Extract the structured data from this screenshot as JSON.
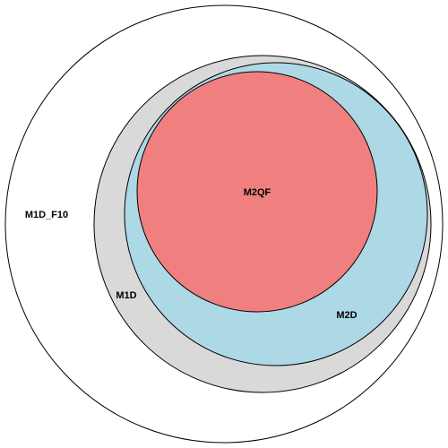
{
  "diagram": {
    "type": "euler",
    "sets": [
      {
        "id": "M1D_F10",
        "label": "M1D_F10",
        "color": "#ffffff"
      },
      {
        "id": "M1D",
        "label": "M1D",
        "color": "#d9d9d9"
      },
      {
        "id": "M2D",
        "label": "M2D",
        "color": "#add8e6"
      },
      {
        "id": "M2QF",
        "label": "M2QF",
        "color": "#f08080"
      }
    ]
  }
}
